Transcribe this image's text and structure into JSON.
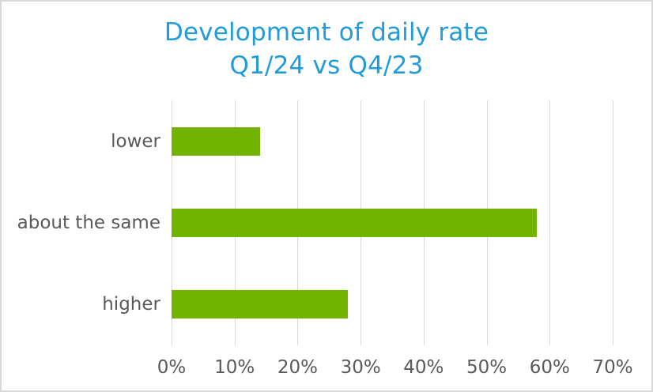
{
  "chart_data": {
    "type": "bar",
    "orientation": "horizontal",
    "title": "Development of daily rate\nQ1/24 vs Q4/23",
    "categories": [
      "lower",
      "about the same",
      "higher"
    ],
    "values": [
      14,
      58,
      28
    ],
    "value_unit": "%",
    "xlabel": "",
    "ylabel": "",
    "xlim": [
      0,
      70
    ],
    "x_ticks": [
      "0%",
      "10%",
      "20%",
      "30%",
      "40%",
      "50%",
      "60%",
      "70%"
    ],
    "x_tick_values": [
      0,
      10,
      20,
      30,
      40,
      50,
      60,
      70
    ],
    "grid": "vertical",
    "legend": "none",
    "colors": {
      "bar": "#72B300",
      "title": "#1F9CD9",
      "labels": "#595959",
      "gridline": "#D9D9D9",
      "border": "#D9D9D9",
      "background": "#FFFFFF"
    }
  }
}
